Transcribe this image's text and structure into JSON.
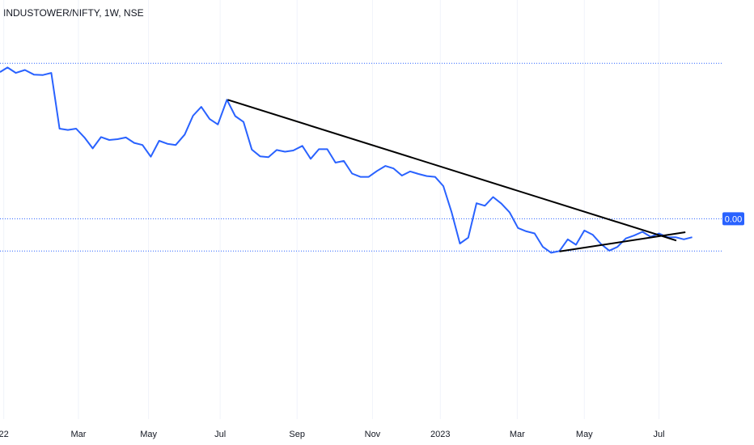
{
  "symbol_header": "INDUSTOWER/NIFTY, 1W, NSE",
  "price_tag": {
    "label": "0.00",
    "color": "#2962ff"
  },
  "colors": {
    "series": "#2962ff",
    "trendline": "#000000",
    "hline": "#2962ff",
    "background": "#ffffff"
  },
  "chart_data": {
    "type": "line",
    "grid": true,
    "ylim": [
      0,
      1000
    ],
    "xlim": [
      0,
      1000
    ],
    "x_ticks": [
      {
        "label": "22",
        "x": 5
      },
      {
        "label": "Mar",
        "x": 104
      },
      {
        "label": "May",
        "x": 197
      },
      {
        "label": "Jul",
        "x": 292
      },
      {
        "label": "Sep",
        "x": 394
      },
      {
        "label": "Nov",
        "x": 494
      },
      {
        "label": "2023",
        "x": 584
      },
      {
        "label": "Mar",
        "x": 686
      },
      {
        "label": "May",
        "x": 775
      },
      {
        "label": "Jul",
        "x": 874
      }
    ],
    "series": [
      {
        "points": [
          [
            0,
            828
          ],
          [
            10,
            839
          ],
          [
            21,
            826
          ],
          [
            33,
            833
          ],
          [
            45,
            822
          ],
          [
            57,
            821
          ],
          [
            68,
            826
          ],
          [
            79,
            693
          ],
          [
            90,
            690
          ],
          [
            101,
            693
          ],
          [
            112,
            672
          ],
          [
            123,
            646
          ],
          [
            134,
            673
          ],
          [
            145,
            666
          ],
          [
            156,
            668
          ],
          [
            167,
            672
          ],
          [
            178,
            659
          ],
          [
            189,
            654
          ],
          [
            200,
            626
          ],
          [
            211,
            664
          ],
          [
            222,
            657
          ],
          [
            233,
            654
          ],
          [
            245,
            679
          ],
          [
            256,
            724
          ],
          [
            267,
            745
          ],
          [
            278,
            716
          ],
          [
            289,
            703
          ],
          [
            301,
            762
          ],
          [
            312,
            723
          ],
          [
            323,
            709
          ],
          [
            334,
            643
          ],
          [
            345,
            627
          ],
          [
            356,
            625
          ],
          [
            367,
            642
          ],
          [
            378,
            638
          ],
          [
            389,
            641
          ],
          [
            401,
            652
          ],
          [
            412,
            621
          ],
          [
            423,
            644
          ],
          [
            434,
            644
          ],
          [
            445,
            612
          ],
          [
            456,
            616
          ],
          [
            467,
            586
          ],
          [
            478,
            578
          ],
          [
            489,
            578
          ],
          [
            500,
            592
          ],
          [
            511,
            604
          ],
          [
            522,
            598
          ],
          [
            533,
            581
          ],
          [
            544,
            591
          ],
          [
            555,
            585
          ],
          [
            566,
            580
          ],
          [
            577,
            578
          ],
          [
            588,
            556
          ],
          [
            599,
            493
          ],
          [
            610,
            419
          ],
          [
            621,
            433
          ],
          [
            632,
            515
          ],
          [
            643,
            509
          ],
          [
            654,
            530
          ],
          [
            665,
            514
          ],
          [
            676,
            493
          ],
          [
            687,
            456
          ],
          [
            698,
            448
          ],
          [
            709,
            443
          ],
          [
            720,
            411
          ],
          [
            731,
            397
          ],
          [
            742,
            401
          ],
          [
            753,
            429
          ],
          [
            764,
            416
          ],
          [
            775,
            450
          ],
          [
            786,
            440
          ],
          [
            797,
            418
          ],
          [
            808,
            402
          ],
          [
            819,
            411
          ],
          [
            830,
            431
          ],
          [
            841,
            438
          ],
          [
            852,
            447
          ],
          [
            863,
            435
          ],
          [
            874,
            443
          ],
          [
            885,
            434
          ],
          [
            896,
            434
          ],
          [
            907,
            429
          ],
          [
            918,
            434
          ]
        ]
      }
    ],
    "trendlines": [
      {
        "from": [
          302,
          762
        ],
        "to": [
          897,
          426
        ]
      },
      {
        "from": [
          742,
          400
        ],
        "to": [
          909,
          446
        ]
      }
    ],
    "hlines": [
      {
        "y": 849,
        "style": "dotted",
        "color": "#2962ff"
      },
      {
        "y": 478,
        "style": "dotted",
        "color": "#2962ff"
      },
      {
        "y": 401,
        "style": "dotted",
        "color": "#2962ff"
      }
    ]
  }
}
